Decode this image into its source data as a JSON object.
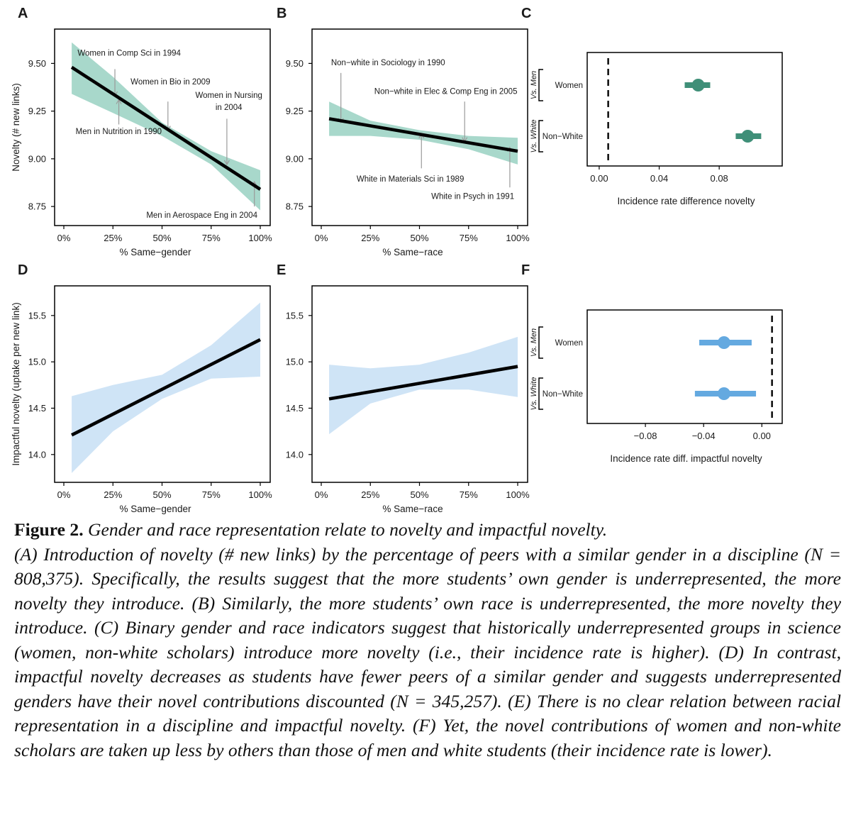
{
  "colors": {
    "ribbon_novelty": "#a8d8cb",
    "ribbon_impact": "#cfe4f6",
    "point_novelty": "#3f8f78",
    "point_impact": "#64a9e0",
    "line": "#000000"
  },
  "chart_data": [
    {
      "id": "A",
      "panel_label": "A",
      "type": "line",
      "title": "",
      "xlabel": "% Same−gender",
      "ylabel": "Novelty (# new links)",
      "xlim": [
        0,
        100
      ],
      "ylim": [
        8.65,
        9.68
      ],
      "xticks": [
        0,
        25,
        50,
        75,
        100
      ],
      "xtick_labels": [
        "0%",
        "25%",
        "50%",
        "75%",
        "100%"
      ],
      "yticks": [
        8.75,
        9.0,
        9.25,
        9.5
      ],
      "ytick_labels": [
        "8.75",
        "9.00",
        "9.25",
        "9.50"
      ],
      "series": [
        {
          "name": "fit",
          "x": [
            4,
            100
          ],
          "y": [
            9.48,
            8.84
          ]
        }
      ],
      "band": {
        "x": [
          4,
          25,
          50,
          75,
          100
        ],
        "lower": [
          9.34,
          9.24,
          9.12,
          8.97,
          8.73
        ],
        "upper": [
          9.61,
          9.43,
          9.19,
          9.04,
          8.94
        ]
      },
      "annotations": [
        {
          "text": "Women in Comp Sci in 1994",
          "x": 26,
          "y_from": 9.47,
          "y_to": 9.33,
          "tx": 7,
          "ty": 9.54,
          "anchor": "start"
        },
        {
          "text": "Women in Bio in 2009",
          "x": 53,
          "y_from": 9.3,
          "y_to": 9.15,
          "tx": 34,
          "ty": 9.39,
          "anchor": "start"
        },
        {
          "text": "Women in Nursing",
          "text2": "in 2004",
          "x": 83,
          "y_from": 9.21,
          "y_to": 8.97,
          "tx": 84,
          "ty": 9.32,
          "anchor": "middle"
        },
        {
          "text": "Men in Nutrition in 1990",
          "x": 28,
          "y_from": 9.18,
          "y_to": 9.31,
          "tx": 6,
          "ty": 9.13,
          "anchor": "start"
        },
        {
          "text": "Men in Aerospace Eng in 2004",
          "x": 97,
          "y_from": 8.75,
          "y_to": 8.88,
          "tx": 42,
          "ty": 8.69,
          "anchor": "start"
        }
      ]
    },
    {
      "id": "B",
      "panel_label": "B",
      "type": "line",
      "title": "",
      "xlabel": "% Same−race",
      "ylabel": "",
      "xlim": [
        0,
        100
      ],
      "ylim": [
        8.65,
        9.68
      ],
      "xticks": [
        0,
        25,
        50,
        75,
        100
      ],
      "xtick_labels": [
        "0%",
        "25%",
        "50%",
        "75%",
        "100%"
      ],
      "yticks": [
        8.75,
        9.0,
        9.25,
        9.5
      ],
      "ytick_labels": [
        "8.75",
        "9.00",
        "9.25",
        "9.50"
      ],
      "series": [
        {
          "name": "fit",
          "x": [
            4,
            100
          ],
          "y": [
            9.21,
            9.04
          ]
        }
      ],
      "band": {
        "x": [
          4,
          25,
          50,
          75,
          100
        ],
        "lower": [
          9.12,
          9.12,
          9.1,
          9.05,
          8.97
        ],
        "upper": [
          9.3,
          9.2,
          9.15,
          9.12,
          9.11
        ]
      },
      "annotations": [
        {
          "text": "Non−white in Sociology in 1990",
          "x": 10,
          "y_from": 9.45,
          "y_to": 9.19,
          "tx": 5,
          "ty": 9.49,
          "anchor": "start"
        },
        {
          "text": "Non−white in Elec & Comp Eng in 2005",
          "x": 73,
          "y_from": 9.3,
          "y_to": 9.09,
          "tx": 27,
          "ty": 9.34,
          "anchor": "start"
        },
        {
          "text": "White in Materials Sci in 1989",
          "x": 51,
          "y_from": 8.95,
          "y_to": 9.13,
          "tx": 18,
          "ty": 8.88,
          "anchor": "start"
        },
        {
          "text": "White in Psych in 1991",
          "x": 96,
          "y_from": 8.85,
          "y_to": 9.06,
          "tx": 56,
          "ty": 8.79,
          "anchor": "start"
        }
      ]
    },
    {
      "id": "C",
      "panel_label": "C",
      "type": "scatter",
      "title": "",
      "xlabel": "Incidence rate difference novelty",
      "xlim": [
        -0.008,
        0.122
      ],
      "xticks": [
        0.0,
        0.04,
        0.08
      ],
      "xtick_labels": [
        "0.00",
        "0.04",
        "0.08"
      ],
      "reference_x": 0.006,
      "points": [
        {
          "group": "Vs. Men",
          "label": "Women",
          "estimate": 0.066,
          "ci": [
            0.057,
            0.074
          ]
        },
        {
          "group": "Vs. White",
          "label": "Non−White",
          "estimate": 0.099,
          "ci": [
            0.091,
            0.108
          ]
        }
      ]
    },
    {
      "id": "D",
      "panel_label": "D",
      "type": "line",
      "title": "",
      "xlabel": "% Same−gender",
      "ylabel": "Impactful novelty (uptake per new link)",
      "xlim": [
        0,
        100
      ],
      "ylim": [
        13.7,
        15.82
      ],
      "xticks": [
        0,
        25,
        50,
        75,
        100
      ],
      "xtick_labels": [
        "0%",
        "25%",
        "50%",
        "75%",
        "100%"
      ],
      "yticks": [
        14.0,
        14.5,
        15.0,
        15.5
      ],
      "ytick_labels": [
        "14.0",
        "14.5",
        "15.0",
        "15.5"
      ],
      "series": [
        {
          "name": "fit",
          "x": [
            4,
            100
          ],
          "y": [
            14.21,
            15.24
          ]
        }
      ],
      "band": {
        "x": [
          4,
          25,
          50,
          75,
          100
        ],
        "lower": [
          13.8,
          14.25,
          14.6,
          14.82,
          14.84
        ],
        "upper": [
          14.63,
          14.75,
          14.86,
          15.18,
          15.64
        ]
      },
      "annotations": []
    },
    {
      "id": "E",
      "panel_label": "E",
      "type": "line",
      "title": "",
      "xlabel": "% Same−race",
      "ylabel": "",
      "xlim": [
        0,
        100
      ],
      "ylim": [
        13.7,
        15.82
      ],
      "xticks": [
        0,
        25,
        50,
        75,
        100
      ],
      "xtick_labels": [
        "0%",
        "25%",
        "50%",
        "75%",
        "100%"
      ],
      "yticks": [
        14.0,
        14.5,
        15.0,
        15.5
      ],
      "ytick_labels": [
        "14.0",
        "14.5",
        "15.0",
        "15.5"
      ],
      "series": [
        {
          "name": "fit",
          "x": [
            4,
            100
          ],
          "y": [
            14.6,
            14.95
          ]
        }
      ],
      "band": {
        "x": [
          4,
          25,
          50,
          75,
          100
        ],
        "lower": [
          14.22,
          14.55,
          14.7,
          14.7,
          14.62
        ],
        "upper": [
          14.97,
          14.93,
          14.97,
          15.1,
          15.27
        ]
      },
      "annotations": []
    },
    {
      "id": "F",
      "panel_label": "F",
      "type": "scatter",
      "title": "",
      "xlabel": "Incidence rate diff. impactful novelty",
      "xlim": [
        -0.12,
        0.014
      ],
      "xticks": [
        -0.08,
        -0.04,
        0.0
      ],
      "xtick_labels": [
        "−0.08",
        "−0.04",
        "0.00"
      ],
      "reference_x": 0.007,
      "points": [
        {
          "group": "Vs. Men",
          "label": "Women",
          "estimate": -0.026,
          "ci": [
            -0.043,
            -0.007
          ]
        },
        {
          "group": "Vs. White",
          "label": "Non−White",
          "estimate": -0.026,
          "ci": [
            -0.046,
            -0.004
          ]
        }
      ]
    }
  ],
  "caption": {
    "title_bold": "Figure 2.",
    "title_italic": " Gender and race representation relate to novelty and impactful novelty.",
    "body": "(A) Introduction of novelty (# new links) by the percentage of peers with a similar gender in a discipline (N = 808,375). Specifically, the results suggest that the more students’ own gender is underrepresented, the more novelty they introduce. (B) Similarly, the more students’ own race is underrepresented, the more novelty they introduce. (C) Binary gender and race indicators suggest that historically underrepresented groups in science (women, non-white scholars) introduce more novelty (i.e., their incidence rate is higher). (D) In contrast, impactful novelty decreases as students have fewer peers of a similar gender and suggests underrepresented genders have their novel contributions discounted (N = 345,257). (E) There is no clear relation between racial representation in a discipline and impactful novelty. (F) Yet, the novel contributions of women and non-white scholars are taken up less by others than those of men and white students (their incidence rate is lower)."
  }
}
